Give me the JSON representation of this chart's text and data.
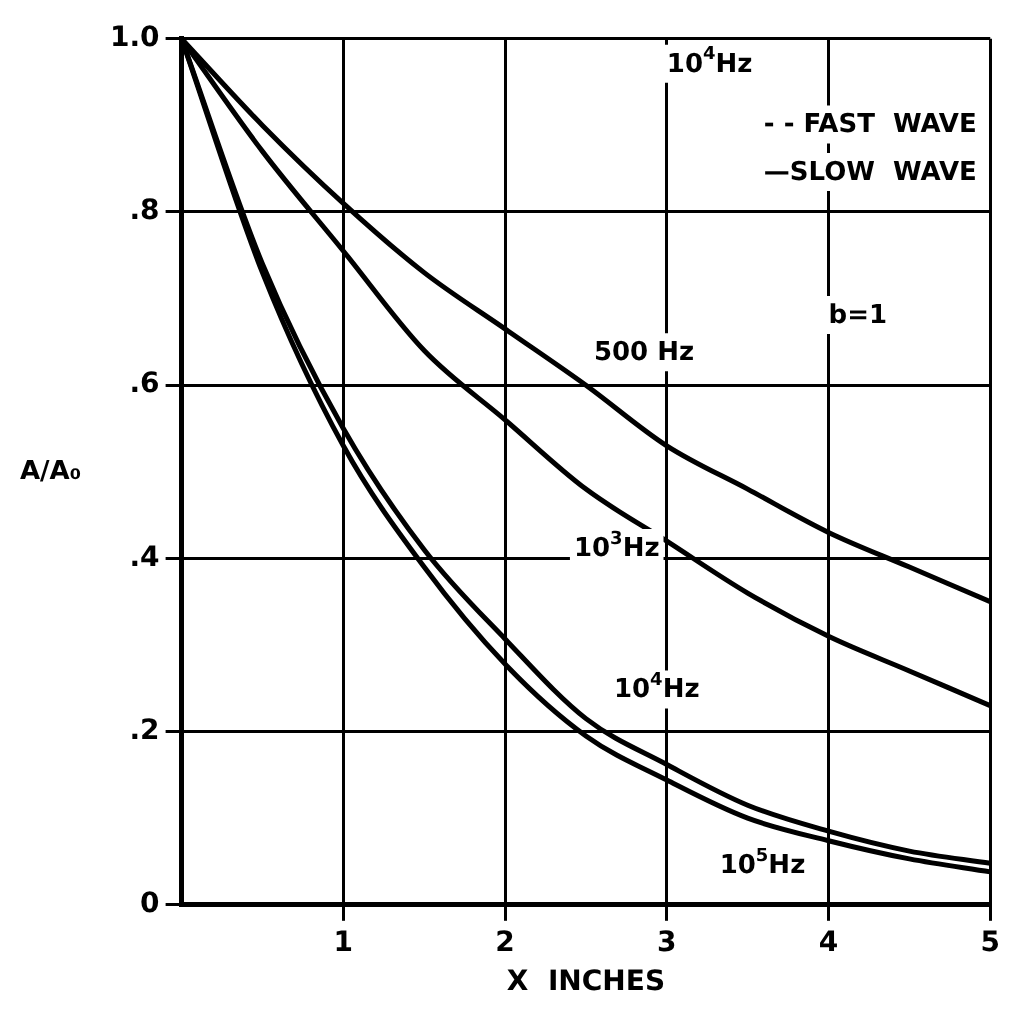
{
  "chart_data": {
    "type": "line",
    "xlabel": "X  INCHES",
    "ylabel": "A/A₀",
    "x": [
      0,
      0.5,
      1,
      1.5,
      2,
      2.5,
      3,
      3.5,
      4,
      4.5,
      5
    ],
    "series": [
      {
        "name": "500 Hz",
        "color": "#000000",
        "values": [
          1,
          0.9,
          0.81,
          0.73,
          0.665,
          0.6,
          0.53,
          0.48,
          0.43,
          0.39,
          0.35
        ]
      },
      {
        "name": "10$^{3}$Hz",
        "color": "#000000",
        "values": [
          1,
          0.87,
          0.755,
          0.64,
          0.56,
          0.48,
          0.42,
          0.36,
          0.31,
          0.27,
          0.23
        ]
      },
      {
        "name": "10$^{4}$Hz",
        "color": "#000000",
        "values": [
          1,
          0.74,
          0.55,
          0.41,
          0.307,
          0.215,
          0.162,
          0.115,
          0.085,
          0.062,
          0.048
        ]
      },
      {
        "name": "10$^{5}$Hz",
        "color": "#000000",
        "values": [
          1,
          0.73,
          0.53,
          0.39,
          0.278,
          0.195,
          0.144,
          0.1,
          0.074,
          0.053,
          0.038
        ]
      }
    ],
    "xlim": [
      0,
      5
    ],
    "xticks": [
      1,
      2,
      3,
      4,
      5
    ],
    "ylim": [
      0,
      1
    ],
    "yticks": [
      {
        "value": 0,
        "label": "0"
      },
      {
        "value": 0.2,
        "label": ".2"
      },
      {
        "value": 0.4,
        "label": ".4"
      },
      {
        "value": 0.6,
        "label": ".6"
      },
      {
        "value": 0.8,
        "label": ".8"
      },
      {
        "value": 1,
        "label": "1.0"
      }
    ],
    "grid": true,
    "legend": false,
    "marker": "none",
    "line_style": "solid",
    "annotations": [
      "10$^{4}$Hz",
      "- - FAST  WAVE",
      "—SLOW  WAVE",
      "b=1"
    ]
  }
}
